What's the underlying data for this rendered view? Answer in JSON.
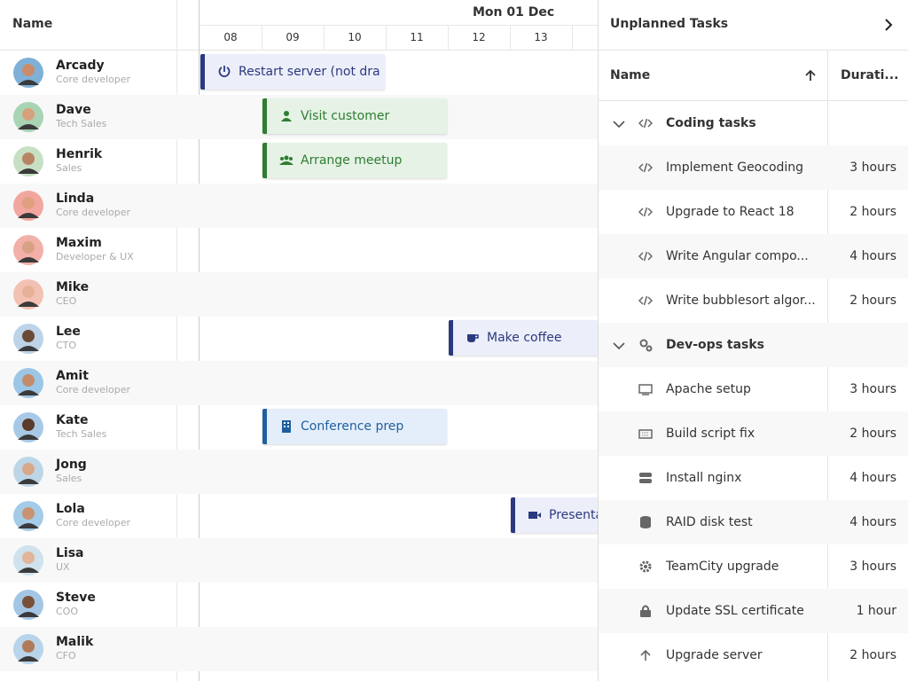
{
  "resource_header": "Name",
  "date_header": "Mon 01 Dec",
  "hours": [
    "08",
    "09",
    "10",
    "11",
    "12",
    "13"
  ],
  "resources": [
    {
      "name": "Arcady",
      "role": "Core developer"
    },
    {
      "name": "Dave",
      "role": "Tech Sales"
    },
    {
      "name": "Henrik",
      "role": "Sales"
    },
    {
      "name": "Linda",
      "role": "Core developer"
    },
    {
      "name": "Maxim",
      "role": "Developer & UX"
    },
    {
      "name": "Mike",
      "role": "CEO"
    },
    {
      "name": "Lee",
      "role": "CTO"
    },
    {
      "name": "Amit",
      "role": "Core developer"
    },
    {
      "name": "Kate",
      "role": "Tech Sales"
    },
    {
      "name": "Jong",
      "role": "Sales"
    },
    {
      "name": "Lola",
      "role": "Core developer"
    },
    {
      "name": "Lisa",
      "role": "UX"
    },
    {
      "name": "Steve",
      "role": "COO"
    },
    {
      "name": "Malik",
      "role": "CFO"
    }
  ],
  "events": [
    "Restart server (not dra",
    "Visit customer",
    "Arrange meetup",
    "Make coffee",
    "Conference prep",
    "Presenta"
  ],
  "panel_title": "Unplanned Tasks",
  "columns": [
    "Name",
    "Durati..."
  ],
  "groups": [
    {
      "name": "Coding tasks",
      "tasks": [
        {
          "name": "Implement Geocoding",
          "duration": "3 hours"
        },
        {
          "name": "Upgrade to React 18",
          "duration": "2 hours"
        },
        {
          "name": "Write Angular compo...",
          "duration": "4 hours"
        },
        {
          "name": "Write bubblesort algor...",
          "duration": "2 hours"
        }
      ]
    },
    {
      "name": "Dev-ops tasks",
      "tasks": [
        {
          "name": "Apache setup",
          "duration": "3 hours"
        },
        {
          "name": "Build script fix",
          "duration": "2 hours"
        },
        {
          "name": "Install nginx",
          "duration": "4 hours"
        },
        {
          "name": "RAID disk test",
          "duration": "4 hours"
        },
        {
          "name": "TeamCity upgrade",
          "duration": "3 hours"
        },
        {
          "name": "Update SSL certificate",
          "duration": "1 hour"
        },
        {
          "name": "Upgrade server",
          "duration": "2 hours"
        }
      ]
    }
  ]
}
